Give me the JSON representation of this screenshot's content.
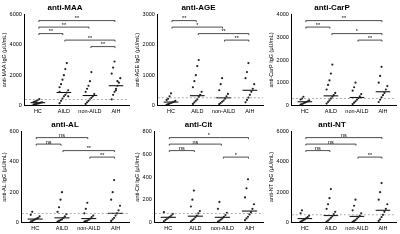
{
  "chart_data": [
    {
      "type": "scatter",
      "title": "anti-MAA",
      "y_label": "anti-MAA IgG (μU/mL)",
      "categories": [
        "HC",
        "AILD",
        "non-AILD",
        "AIH"
      ],
      "values": [
        [
          50,
          80,
          100,
          120,
          150,
          180,
          200,
          220,
          250,
          300,
          350,
          420
        ],
        [
          150,
          300,
          450,
          600,
          700,
          850,
          1000,
          1200,
          1400,
          1700,
          2000,
          2400,
          2800,
          600,
          900
        ],
        [
          100,
          200,
          300,
          400,
          500,
          600,
          750,
          900,
          1100,
          1300,
          1600,
          2200
        ],
        [
          400,
          700,
          900,
          1100,
          1300,
          1500,
          1800,
          2100,
          2500,
          2900,
          1000,
          1600
        ]
      ],
      "medians": [
        180,
        850,
        650,
        1300
      ],
      "cutoff": 400,
      "ylim": [
        0,
        6000
      ],
      "yticks": [
        0,
        2000,
        4000,
        6000
      ],
      "grid": false,
      "color": "#222222",
      "comparisons": [
        {
          "from": "HC",
          "to": "AIH",
          "label": "**"
        },
        {
          "from": "HC",
          "to": "non-AILD",
          "label": "**"
        },
        {
          "from": "HC",
          "to": "AILD",
          "label": "**"
        },
        {
          "from": "AILD",
          "to": "AIH",
          "label": "**"
        },
        {
          "from": "non-AILD",
          "to": "AIH",
          "label": "**"
        }
      ]
    },
    {
      "type": "scatter",
      "title": "anti-AGE",
      "y_label": "anti-AGE IgG (μU/mL)",
      "categories": [
        "HC",
        "AILD",
        "non-AILD",
        "AIH"
      ],
      "values": [
        [
          20,
          40,
          60,
          80,
          100,
          120,
          150,
          180,
          220,
          300,
          400
        ],
        [
          50,
          100,
          150,
          200,
          280,
          350,
          450,
          600,
          800,
          1000,
          1300,
          1500
        ],
        [
          40,
          80,
          120,
          160,
          220,
          300,
          380,
          500,
          700,
          900
        ],
        [
          100,
          180,
          260,
          350,
          450,
          550,
          700,
          900,
          1100,
          1400
        ]
      ],
      "medians": [
        110,
        320,
        250,
        500
      ],
      "cutoff": 250,
      "ylim": [
        0,
        3000
      ],
      "yticks": [
        0,
        1000,
        2000,
        3000
      ],
      "grid": false,
      "color": "#222222",
      "comparisons": [
        {
          "from": "HC",
          "to": "AILD",
          "label": "**"
        },
        {
          "from": "HC",
          "to": "non-AILD",
          "label": "*"
        },
        {
          "from": "AILD",
          "to": "AIH",
          "label": "**"
        },
        {
          "from": "non-AILD",
          "to": "AIH",
          "label": "**"
        }
      ]
    },
    {
      "type": "scatter",
      "title": "anti-CarP",
      "y_label": "anti-CarP IgG (μU/mL)",
      "categories": [
        "HC",
        "AILD",
        "non-AILD",
        "AIH"
      ],
      "values": [
        [
          30,
          60,
          90,
          120,
          150,
          180,
          220,
          260,
          300,
          380
        ],
        [
          80,
          150,
          220,
          300,
          380,
          450,
          550,
          700,
          900,
          1100,
          1400,
          1800
        ],
        [
          60,
          120,
          180,
          250,
          320,
          400,
          500,
          650,
          800,
          1000
        ],
        [
          150,
          250,
          350,
          450,
          550,
          700,
          850,
          1000,
          1300,
          1700
        ]
      ],
      "medians": [
        160,
        420,
        350,
        600
      ],
      "cutoff": 300,
      "ylim": [
        0,
        4000
      ],
      "yticks": [
        0,
        1000,
        2000,
        3000,
        4000
      ],
      "grid": false,
      "color": "#222222",
      "comparisons": [
        {
          "from": "HC",
          "to": "AIH",
          "label": "**"
        },
        {
          "from": "HC",
          "to": "AILD",
          "label": "**"
        },
        {
          "from": "AILD",
          "to": "AIH",
          "label": "*"
        },
        {
          "from": "non-AILD",
          "to": "AIH",
          "label": "**"
        }
      ]
    },
    {
      "type": "scatter",
      "title": "anti-AL",
      "y_label": "anti-AL IgG (μU/mL)",
      "categories": [
        "HC",
        "AILD",
        "non-AILD",
        "AIH"
      ],
      "values": [
        [
          5,
          10,
          15,
          20,
          25,
          30,
          40,
          50,
          70
        ],
        [
          5,
          10,
          15,
          20,
          30,
          40,
          55,
          70,
          100,
          150,
          200
        ],
        [
          5,
          8,
          12,
          18,
          25,
          35,
          45,
          60,
          90,
          130
        ],
        [
          10,
          20,
          30,
          45,
          60,
          80,
          110,
          150,
          200,
          280
        ]
      ],
      "medians": [
        22,
        30,
        25,
        60
      ],
      "cutoff": 60,
      "ylim": [
        0,
        600
      ],
      "yticks": [
        0,
        200,
        400,
        600
      ],
      "grid": false,
      "color": "#222222",
      "comparisons": [
        {
          "from": "HC",
          "to": "non-AILD",
          "label": "ns"
        },
        {
          "from": "HC",
          "to": "AILD",
          "label": "ns"
        },
        {
          "from": "AILD",
          "to": "AIH",
          "label": "**"
        },
        {
          "from": "non-AILD",
          "to": "AIH",
          "label": "**"
        }
      ]
    },
    {
      "type": "scatter",
      "title": "anti-Cit",
      "y_label": "anti-Cit IgG (μU/mL)",
      "categories": [
        "HC",
        "AILD",
        "non-AILD",
        "AIH"
      ],
      "values": [
        [
          10,
          20,
          30,
          40,
          50,
          60,
          75,
          90
        ],
        [
          10,
          20,
          30,
          45,
          60,
          80,
          100,
          140,
          200,
          280
        ],
        [
          8,
          15,
          25,
          35,
          50,
          65,
          85,
          120,
          180
        ],
        [
          20,
          35,
          50,
          70,
          90,
          120,
          160,
          220,
          300,
          380
        ]
      ],
      "medians": [
        45,
        55,
        45,
        100
      ],
      "cutoff": 80,
      "ylim": [
        0,
        800
      ],
      "yticks": [
        0,
        200,
        400,
        600,
        800
      ],
      "grid": false,
      "color": "#222222",
      "comparisons": [
        {
          "from": "HC",
          "to": "AIH",
          "label": "*"
        },
        {
          "from": "HC",
          "to": "non-AILD",
          "label": "ns"
        },
        {
          "from": "HC",
          "to": "AILD",
          "label": "ns"
        },
        {
          "from": "non-AILD",
          "to": "AIH",
          "label": "*"
        }
      ]
    },
    {
      "type": "scatter",
      "title": "anti-NT",
      "y_label": "anti-NT IgG (μU/mL)",
      "categories": [
        "HC",
        "AILD",
        "non-AILD",
        "AIH"
      ],
      "values": [
        [
          50,
          100,
          150,
          200,
          280,
          350,
          450,
          600,
          800
        ],
        [
          50,
          120,
          200,
          300,
          400,
          550,
          700,
          900,
          1200,
          1600,
          2200
        ],
        [
          40,
          100,
          160,
          250,
          350,
          450,
          600,
          800,
          1100,
          1500
        ],
        [
          100,
          200,
          350,
          500,
          700,
          900,
          1200,
          1500,
          2000,
          2600
        ]
      ],
      "medians": [
        250,
        450,
        400,
        800
      ],
      "cutoff": 500,
      "ylim": [
        0,
        6000
      ],
      "yticks": [
        0,
        2000,
        4000,
        6000
      ],
      "grid": false,
      "color": "#222222",
      "comparisons": [
        {
          "from": "HC",
          "to": "AIH",
          "label": "ns"
        },
        {
          "from": "HC",
          "to": "non-AILD",
          "label": "ns"
        },
        {
          "from": "HC",
          "to": "AILD",
          "label": "ns"
        },
        {
          "from": "non-AILD",
          "to": "AIH",
          "label": "**"
        }
      ]
    }
  ]
}
